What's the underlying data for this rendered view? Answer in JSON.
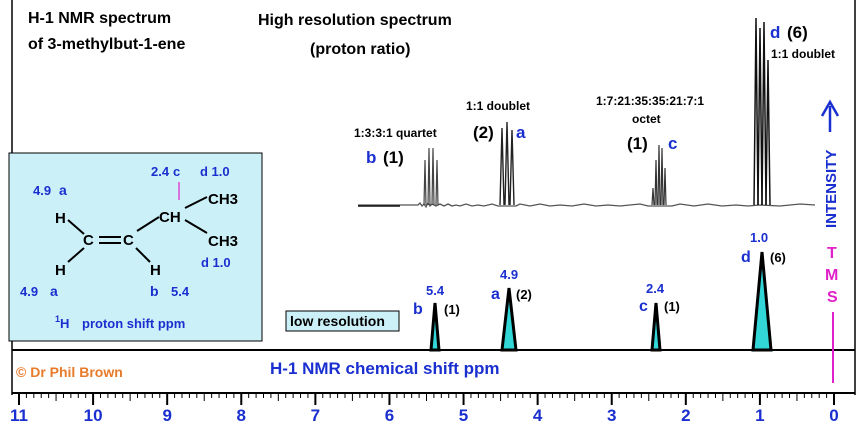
{
  "title": {
    "line1": "H-1 NMR spectrum",
    "line2": "of 3-methylbut-1-ene"
  },
  "high_res": {
    "title_line1": "High resolution spectrum",
    "title_line2": "(proton ratio)"
  },
  "intensity_label": "INTENSITY",
  "tms_label": [
    "T",
    "M",
    "S"
  ],
  "low_res_label": "low resolution",
  "xaxis_label": "H-1 NMR chemical shift ppm",
  "credit": "© Dr Phil Brown",
  "ticks": [
    "11",
    "10",
    "9",
    "8",
    "7",
    "6",
    "5",
    "4",
    "3",
    "2",
    "1",
    "0"
  ],
  "colors": {
    "blue": "#1a2fcf",
    "magenta": "#e020c8",
    "cyan": "#33d6d6",
    "panel": "#ccf0f8",
    "orange": "#e87a2a"
  },
  "high_res_groups": [
    {
      "pattern": "1:3:3:1 quartet",
      "letter": "b",
      "ratio": "(1)"
    },
    {
      "pattern": "1:1 doublet",
      "letter": "a",
      "ratio": "(2)"
    },
    {
      "pattern": "1:7:21:35:35:21:7:1",
      "pattern2": "octet",
      "letter": "c",
      "ratio": "(1)"
    },
    {
      "pattern": "1:1 doublet",
      "letter": "d",
      "ratio": "(6)"
    }
  ],
  "low_res_peaks": [
    {
      "letter": "b",
      "shift": "5.4",
      "ratio": "(1)"
    },
    {
      "letter": "a",
      "shift": "4.9",
      "ratio": "(2)"
    },
    {
      "letter": "c",
      "shift": "2.4",
      "ratio": "(1)"
    },
    {
      "letter": "d",
      "shift": "1.0",
      "ratio": "(6)"
    }
  ],
  "molecule": {
    "shift_c": "2.4",
    "letter_c": "c",
    "shift_d_top": "d 1.0",
    "shift_d_bottom": "d 1.0",
    "shift_a_top": "4.9",
    "letter_a_top": "a",
    "shift_a_bottom": "4.9",
    "letter_a_bottom": "a",
    "letter_b": "b",
    "shift_b": "5.4",
    "atom_H": "H",
    "atom_C": "C",
    "atom_CH": "CH",
    "atom_CH3": "CH3",
    "caption_sup": "1",
    "caption_H": "H",
    "caption": "proton shift  ppm"
  }
}
